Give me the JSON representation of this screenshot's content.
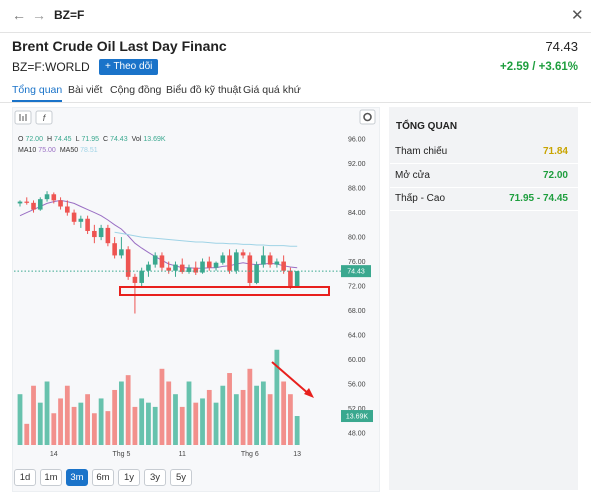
{
  "nav": {
    "symbol": "BZ=F"
  },
  "header": {
    "title": "Brent Crude Oil Last Day Financ",
    "price": "74.43",
    "ticker": "BZ=F:WORLD",
    "follow_button": "Theo dõi",
    "change": "+2.59 / +3.61%"
  },
  "tabs": [
    "Tổng quan",
    "Bài viết",
    "Cộng đồng",
    "Biểu đồ kỹ thuật",
    "Giá quá khứ"
  ],
  "overview": {
    "title": "TỔNG QUAN",
    "rows": [
      {
        "label": "Tham chiếu",
        "value": "71.84",
        "color": "#c9a400"
      },
      {
        "label": "Mở cửa",
        "value": "72.00",
        "color": "#1e9e3e"
      },
      {
        "label": "Thấp - Cao",
        "value": "71.95 - 74.45",
        "color": "#1e9e3e"
      }
    ]
  },
  "range_buttons": [
    "1d",
    "1m",
    "3m",
    "6m",
    "1y",
    "3y",
    "5y"
  ],
  "active_range": 2,
  "chart_data": {
    "type": "candlestick",
    "ohlc_legend": [
      {
        "key": "O",
        "value": "72.00"
      },
      {
        "key": "H",
        "value": "74.45"
      },
      {
        "key": "L",
        "value": "71.95"
      },
      {
        "key": "C",
        "value": "74.43"
      },
      {
        "key": "Vol",
        "value": "13.69K"
      }
    ],
    "categories": [
      null,
      null,
      null,
      null,
      null,
      "14",
      null,
      null,
      null,
      null,
      null,
      null,
      null,
      null,
      null,
      "Thg 5",
      null,
      null,
      null,
      null,
      null,
      null,
      null,
      null,
      "11",
      null,
      null,
      null,
      null,
      null,
      null,
      null,
      null,
      null,
      "Thg 6",
      null,
      null,
      null,
      null,
      null,
      null,
      "13"
    ],
    "open": [
      85.5,
      85.8,
      85.6,
      84.5,
      86.2,
      87,
      86,
      85,
      84,
      82.5,
      83,
      81,
      80,
      81.5,
      79,
      77,
      78,
      73.5,
      72.5,
      74.5,
      75.5,
      77,
      75,
      74.5,
      75.5,
      74.3,
      75,
      74.2,
      76,
      75,
      75.8,
      77,
      74.5,
      77.5,
      77,
      72.5,
      75.5,
      77,
      75.5,
      76,
      74.5,
      72.0
    ],
    "high": [
      86,
      86.5,
      86,
      86.5,
      87.5,
      87.3,
      86.5,
      86,
      84.5,
      83.5,
      83.5,
      82,
      82,
      82,
      80,
      80,
      78.5,
      74,
      75,
      76,
      77.5,
      77.5,
      76,
      76,
      76.5,
      75.5,
      76,
      76.5,
      76.8,
      76,
      77.5,
      78,
      78,
      78,
      77.5,
      76,
      78.5,
      77.5,
      76.5,
      77,
      75,
      74.45
    ],
    "low": [
      85,
      85.3,
      84,
      84.3,
      85.8,
      85.5,
      84.5,
      83.5,
      82,
      81.5,
      80.5,
      79,
      79.5,
      78.5,
      76.5,
      76.5,
      73,
      67.5,
      72,
      73.5,
      75,
      74.5,
      74,
      73.5,
      74,
      74,
      73.8,
      74,
      74.5,
      74.5,
      75.5,
      74,
      74,
      76.5,
      72,
      72.3,
      75,
      75,
      75,
      74,
      71.5,
      71.95
    ],
    "close": [
      85.8,
      85.6,
      84.5,
      86.2,
      87,
      86,
      85,
      84,
      82.5,
      83,
      81,
      80,
      81.5,
      79,
      77,
      78,
      73.5,
      72.5,
      74.5,
      75.5,
      77,
      75,
      74.5,
      75.5,
      74.3,
      75,
      74.2,
      76,
      75,
      75.8,
      77,
      74.5,
      77.5,
      77,
      72.5,
      75.5,
      77,
      75.5,
      76,
      74.5,
      72,
      74.43
    ],
    "up_color": "#3aa88f",
    "down_color": "#ee5451",
    "volume": {
      "values": [
        24,
        10,
        28,
        20,
        30,
        15,
        22,
        28,
        18,
        20,
        24,
        15,
        22,
        16,
        26,
        30,
        33,
        18,
        22,
        20,
        18,
        36,
        30,
        24,
        18,
        30,
        20,
        22,
        26,
        20,
        28,
        34,
        24,
        26,
        36,
        28,
        30,
        24,
        45,
        30,
        24,
        13.69
      ],
      "up_color": "#67c2ad",
      "down_color": "#f2908c",
      "ylim": [
        0,
        60
      ]
    },
    "price_tag": "74.43",
    "volume_tag": "13.69K",
    "series": [
      {
        "name": "MA10",
        "color": "#9a6fc4",
        "legend_value": "75.00",
        "values": [
          83.5,
          84,
          84.5,
          85,
          85.5,
          85.8,
          86,
          85.8,
          85.5,
          85,
          84.5,
          84,
          83.5,
          82.8,
          82,
          81.3,
          80.2,
          79,
          78.2,
          77.5,
          76.8,
          76.2,
          75.6,
          75.3,
          75,
          75,
          74.9,
          74.9,
          75,
          75,
          75.2,
          75.3,
          75.6,
          75.8,
          75.6,
          75.5,
          75.6,
          75.7,
          75.6,
          75.3,
          75.1,
          75.0
        ]
      },
      {
        "name": "MA50",
        "color": "#9fd3e6",
        "legend_value": "78.51",
        "values": [
          null,
          null,
          null,
          null,
          null,
          null,
          null,
          null,
          null,
          null,
          null,
          null,
          null,
          null,
          80.8,
          80.6,
          80.4,
          80.2,
          80,
          79.9,
          79.8,
          79.7,
          79.6,
          79.5,
          79.4,
          79.3,
          79.2,
          79.2,
          79.1,
          79,
          79,
          78.9,
          78.9,
          78.8,
          78.8,
          78.7,
          78.7,
          78.6,
          78.6,
          78.6,
          78.5,
          78.51
        ]
      }
    ],
    "ylim": [
      46,
      98
    ],
    "yticks": [
      {
        "value": 96,
        "label": "96.00"
      },
      {
        "value": 92,
        "label": "92.00"
      },
      {
        "value": 88,
        "label": "88.00"
      },
      {
        "value": 84,
        "label": "84.00"
      },
      {
        "value": 80,
        "label": "80.00"
      },
      {
        "value": 76,
        "label": "76.00"
      },
      {
        "value": 72,
        "label": "72.00"
      },
      {
        "value": 68,
        "label": "68.00"
      },
      {
        "value": 64,
        "label": "64.00"
      },
      {
        "value": 60,
        "label": "60.00"
      },
      {
        "value": 56,
        "label": "56.00"
      },
      {
        "value": 52,
        "label": "52.00"
      },
      {
        "value": 48,
        "label": "48.00"
      }
    ],
    "grid": false
  }
}
